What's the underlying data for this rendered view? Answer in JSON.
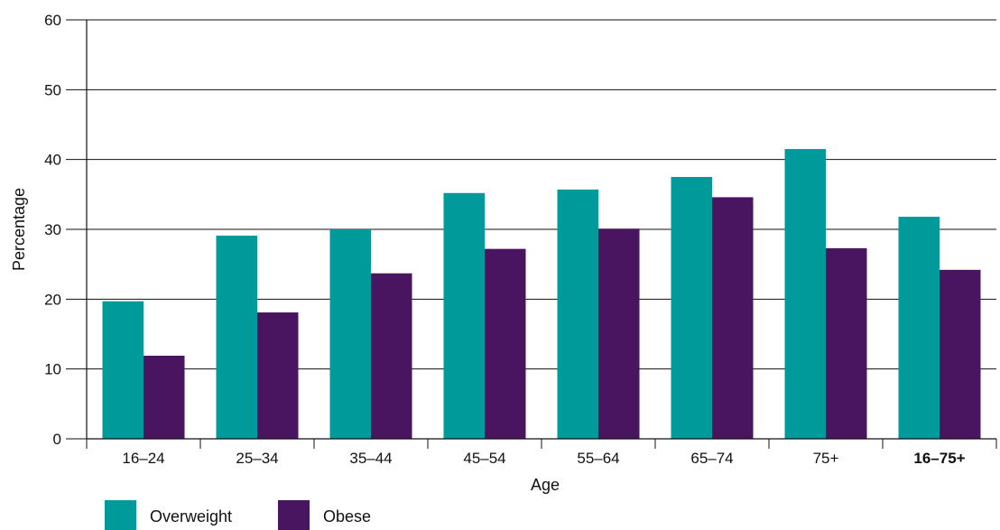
{
  "chart_data": {
    "type": "bar",
    "categories": [
      "16–24",
      "25–34",
      "35–44",
      "45–54",
      "55–64",
      "65–74",
      "75+",
      "16–75+"
    ],
    "bold_categories": [
      "16–75+"
    ],
    "series": [
      {
        "name": "Overweight",
        "color": "#009a9a",
        "values": [
          19.7,
          29.1,
          30.0,
          35.2,
          35.7,
          37.5,
          41.5,
          31.8
        ]
      },
      {
        "name": "Obese",
        "color": "#4a1560",
        "values": [
          11.9,
          18.1,
          23.7,
          27.2,
          30.1,
          34.6,
          27.3,
          24.2
        ]
      }
    ],
    "title": "",
    "xlabel": "Age",
    "ylabel": "Percentage",
    "ylim": [
      0,
      60
    ],
    "yticks": [
      0,
      10,
      20,
      30,
      40,
      50,
      60
    ],
    "grid": "horizontal",
    "legend": "bottom-left"
  }
}
